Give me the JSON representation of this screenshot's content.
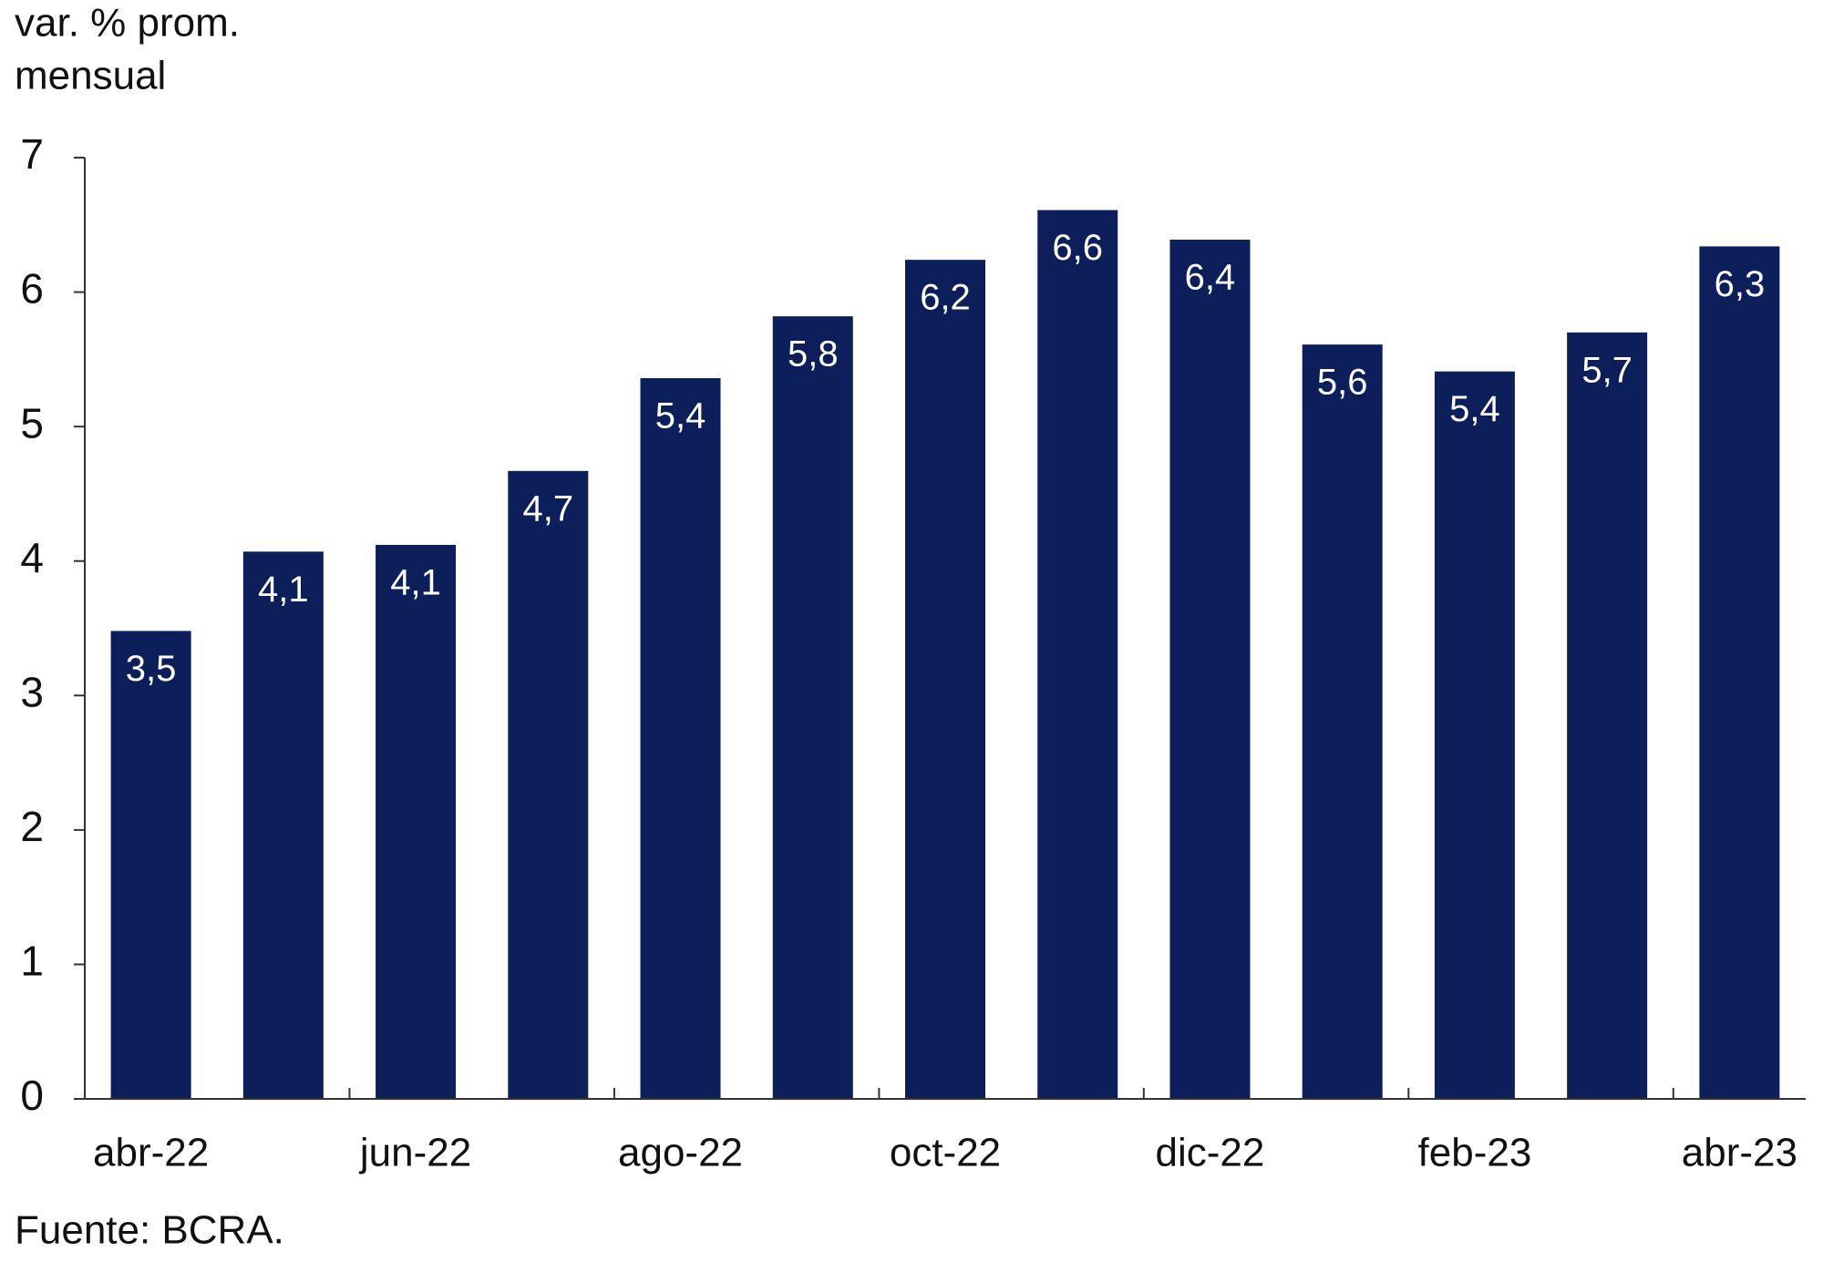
{
  "chart_data": {
    "type": "bar",
    "y_label": [
      "var. % prom.",
      "mensual"
    ],
    "source": "Fuente: BCRA.",
    "categories": [
      "abr-22",
      null,
      "jun-22",
      null,
      "ago-22",
      null,
      "oct-22",
      null,
      "dic-22",
      null,
      "feb-23",
      null,
      "abr-23"
    ],
    "values": [
      3.48,
      4.07,
      4.12,
      4.67,
      5.36,
      5.82,
      6.24,
      6.61,
      6.39,
      5.61,
      5.41,
      5.7,
      6.34
    ],
    "value_labels": [
      "3,5",
      "4,1",
      "4,1",
      "4,7",
      "5,4",
      "5,8",
      "6,2",
      "6,6",
      "6,4",
      "5,6",
      "5,4",
      "5,7",
      "6,3"
    ],
    "color": "#0c1f5a",
    "ylim": [
      0,
      7
    ],
    "yticks": [
      0,
      1,
      2,
      3,
      4,
      5,
      6,
      7
    ],
    "grid": false
  }
}
